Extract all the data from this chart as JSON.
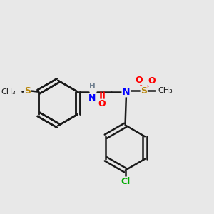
{
  "background_color": "#e8e8e8",
  "bond_color": "#1a1a1a",
  "S_color": "#b8860b",
  "N_color": "#0000ff",
  "O_color": "#ff0000",
  "Cl_color": "#00aa00",
  "bond_width": 1.8,
  "figsize": [
    3.0,
    3.0
  ],
  "dpi": 100,
  "ring_r": 0.115,
  "xlim": [
    0.0,
    1.0
  ],
  "ylim": [
    0.05,
    1.0
  ]
}
